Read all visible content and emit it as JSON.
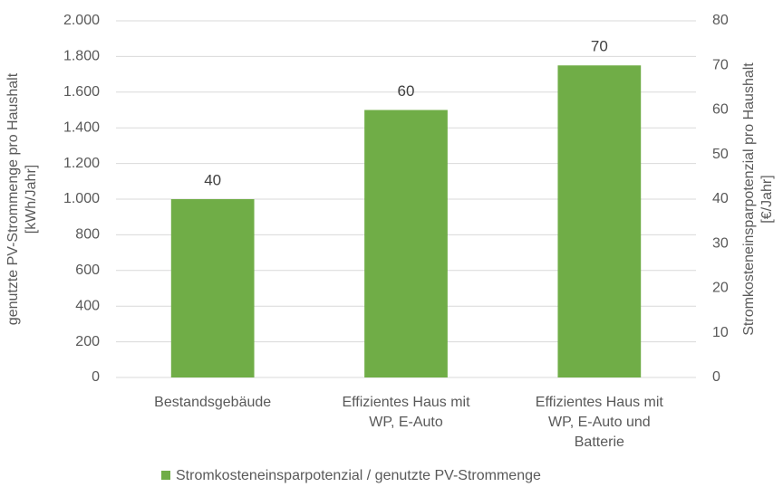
{
  "chart_data": {
    "type": "bar",
    "categories": [
      "Bestandsgebäude",
      "Effizientes Haus mit\nWP, E-Auto",
      "Effizientes Haus mit\nWP, E-Auto und\nBatterie"
    ],
    "series": [
      {
        "name": "Stromkosteneinsparpotenzial / genutzte PV-Strommenge",
        "color": "#70ad47",
        "axis": "y2",
        "values": [
          40,
          60,
          70
        ]
      }
    ],
    "ylabel": "genutzte PV-Strommenge pro Haushalt\n[kWh/Jahr]",
    "y2label": "Stromkosteneinsparpotenzial pro Haushalt\n[€/Jahr]",
    "ylim": [
      0,
      2000
    ],
    "yticks": [
      0,
      200,
      400,
      600,
      800,
      {
        "value": 1000,
        "label": "1.000"
      },
      {
        "value": 1200,
        "label": "1.200"
      },
      {
        "value": 1400,
        "label": "1.400"
      },
      {
        "value": 1600,
        "label": "1.600"
      },
      {
        "value": 1800,
        "label": "1.800"
      },
      {
        "value": 2000,
        "label": "2.000"
      }
    ],
    "y2lim": [
      0,
      80
    ],
    "y2ticks": [
      0,
      10,
      20,
      30,
      40,
      50,
      60,
      70,
      80
    ],
    "grid": true,
    "legend": "bottom"
  }
}
